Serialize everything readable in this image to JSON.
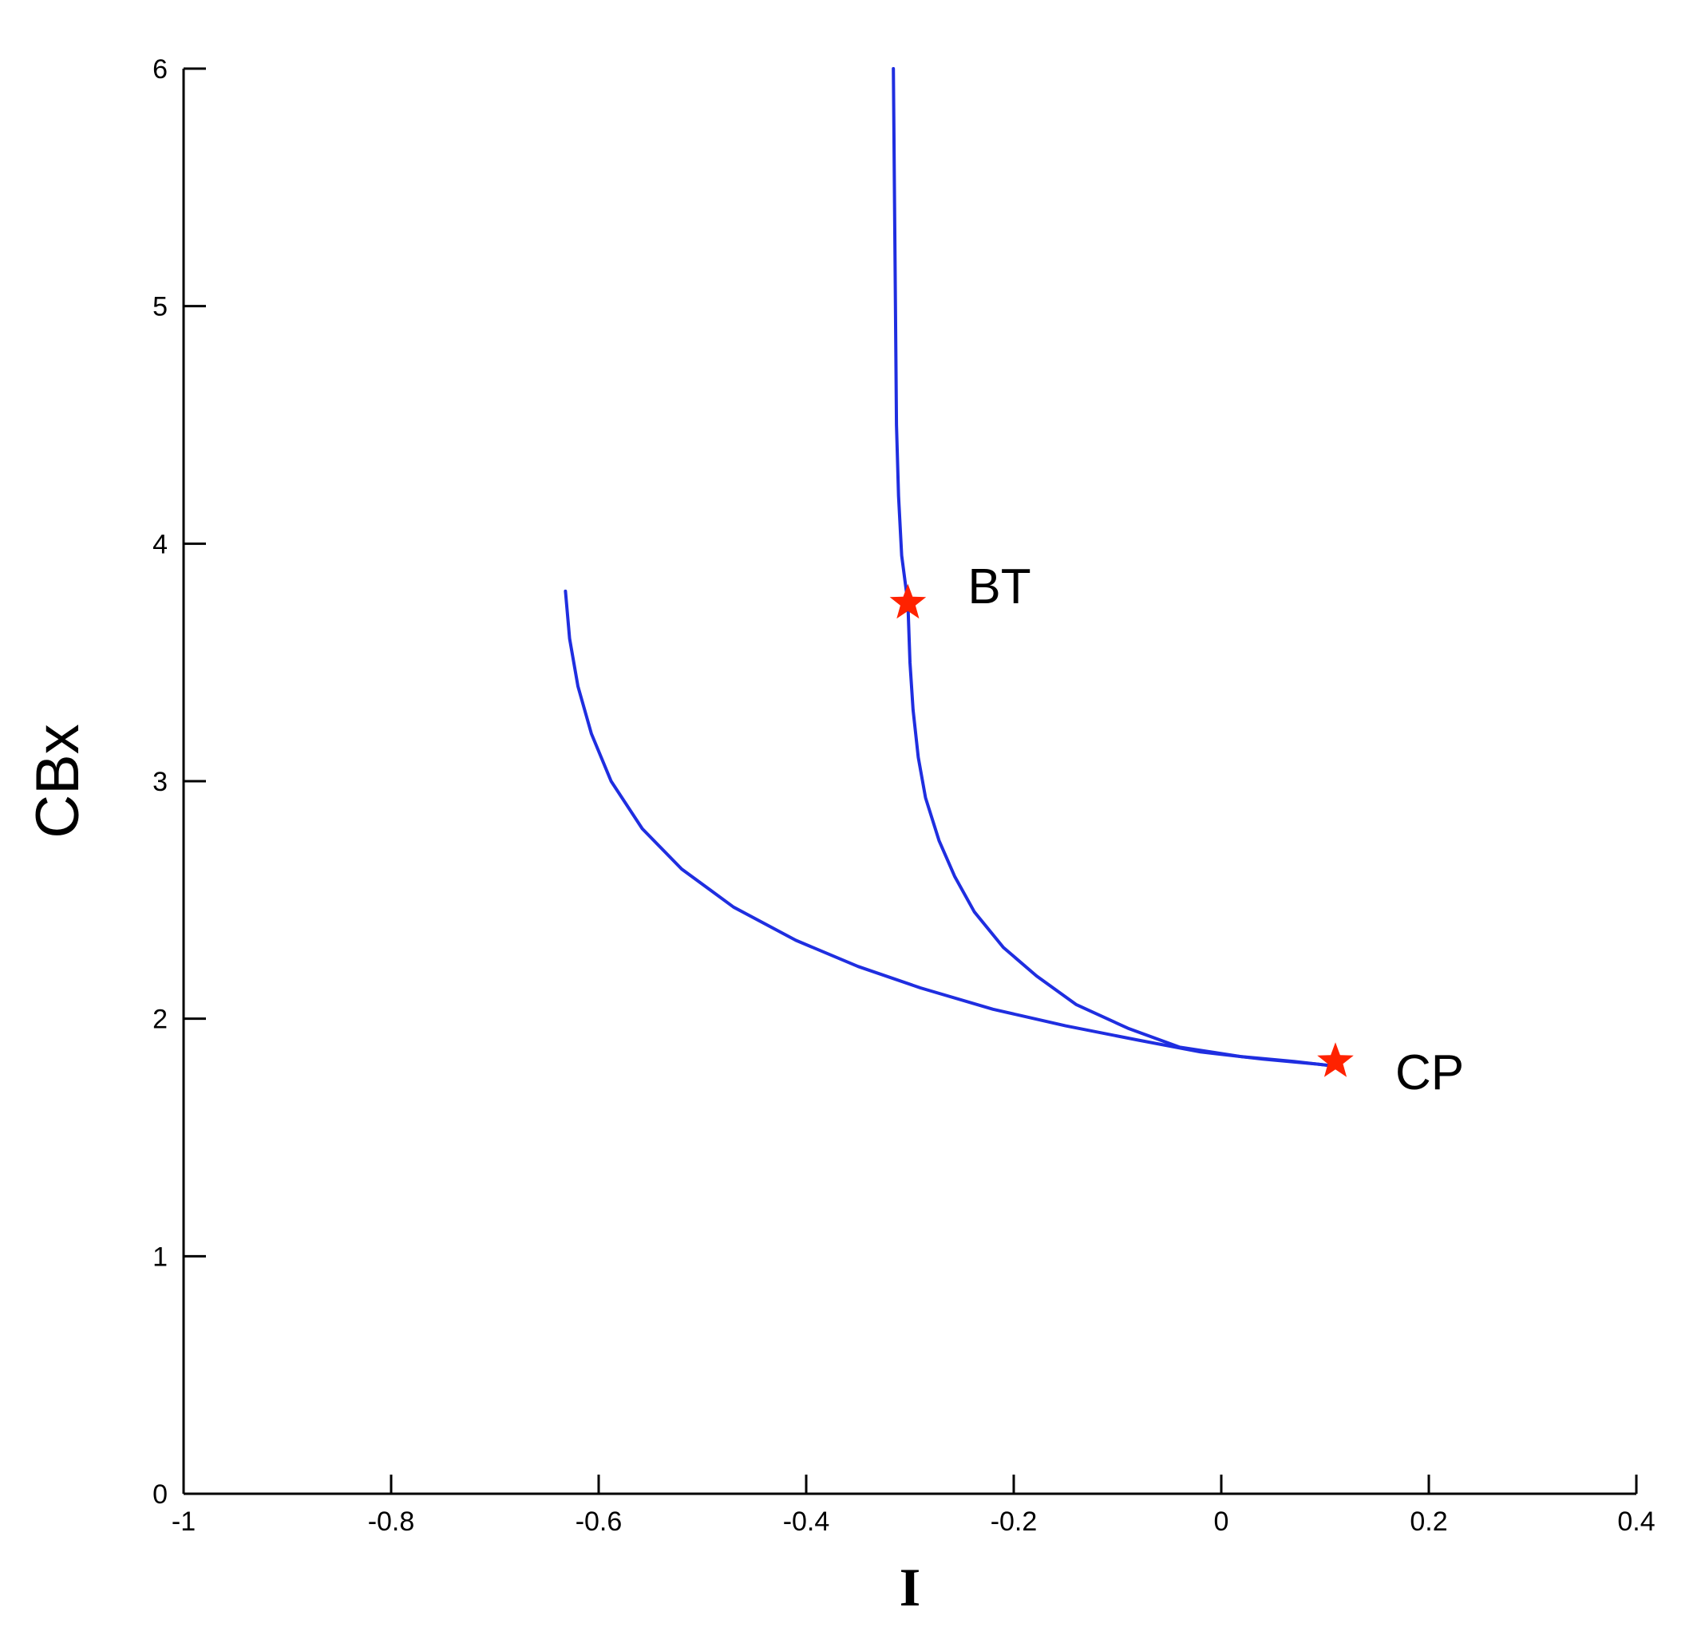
{
  "chart_data": {
    "type": "line",
    "title": "",
    "xlabel": "I",
    "ylabel": "CBx",
    "xlim": [
      -1,
      0.4
    ],
    "ylim": [
      0,
      6
    ],
    "x_ticks": [
      -1,
      -0.8,
      -0.6,
      -0.4,
      -0.2,
      0,
      0.2,
      0.4
    ],
    "x_tick_labels": [
      "-1",
      "-0.8",
      "-0.6",
      "-0.4",
      "-0.2",
      "0",
      "0.2",
      "0.4"
    ],
    "y_ticks": [
      0,
      1,
      2,
      3,
      4,
      5,
      6
    ],
    "y_tick_labels": [
      "0",
      "1",
      "2",
      "3",
      "4",
      "5",
      "6"
    ],
    "grid": false,
    "line_color": "#1f2ee0",
    "marker_color": "#ff2200",
    "series": [
      {
        "points": [
          [
            -0.316,
            6.0
          ],
          [
            -0.315,
            5.5
          ],
          [
            -0.314,
            5.0
          ],
          [
            -0.313,
            4.5
          ],
          [
            -0.311,
            4.2
          ],
          [
            -0.308,
            3.95
          ],
          [
            -0.302,
            3.75
          ],
          [
            -0.3,
            3.5
          ],
          [
            -0.297,
            3.3
          ],
          [
            -0.292,
            3.1
          ],
          [
            -0.285,
            2.93
          ],
          [
            -0.272,
            2.75
          ],
          [
            -0.257,
            2.6
          ],
          [
            -0.238,
            2.45
          ],
          [
            -0.21,
            2.3
          ],
          [
            -0.178,
            2.18
          ],
          [
            -0.14,
            2.06
          ],
          [
            -0.09,
            1.96
          ],
          [
            -0.04,
            1.88
          ],
          [
            0.02,
            1.84
          ],
          [
            0.07,
            1.82
          ],
          [
            0.11,
            1.8
          ]
        ]
      },
      {
        "points": [
          [
            -0.632,
            3.8
          ],
          [
            -0.628,
            3.6
          ],
          [
            -0.62,
            3.4
          ],
          [
            -0.607,
            3.2
          ],
          [
            -0.588,
            3.0
          ],
          [
            -0.558,
            2.8
          ],
          [
            -0.52,
            2.63
          ],
          [
            -0.47,
            2.47
          ],
          [
            -0.41,
            2.33
          ],
          [
            -0.35,
            2.22
          ],
          [
            -0.29,
            2.13
          ],
          [
            -0.22,
            2.04
          ],
          [
            -0.15,
            1.97
          ],
          [
            -0.08,
            1.91
          ],
          [
            -0.02,
            1.86
          ],
          [
            0.04,
            1.83
          ],
          [
            0.09,
            1.81
          ],
          [
            0.11,
            1.8
          ]
        ]
      }
    ],
    "annotations": [
      {
        "text": "BT",
        "point": [
          -0.302,
          3.75
        ]
      },
      {
        "text": "CP",
        "point": [
          0.11,
          1.82
        ]
      }
    ]
  }
}
